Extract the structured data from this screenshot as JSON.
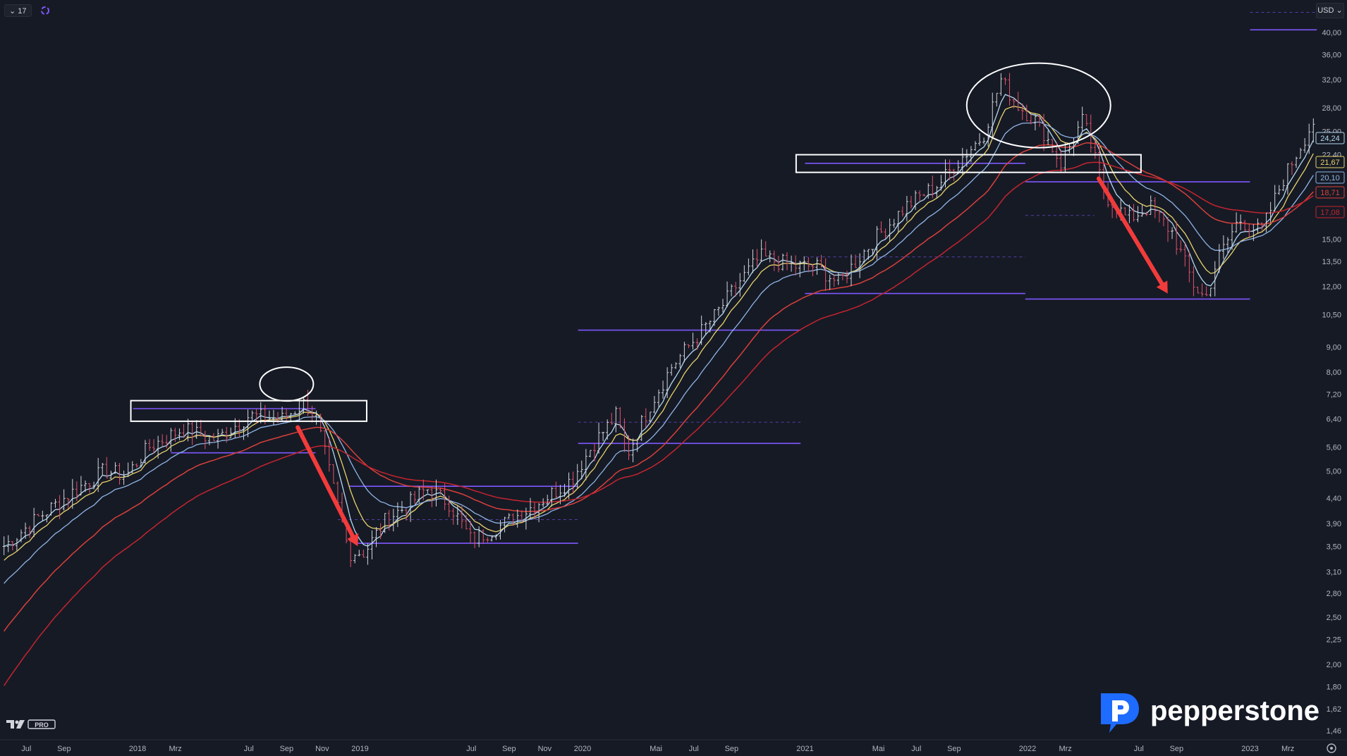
{
  "toolbar": {
    "interval_label": "17",
    "currency_label": "USD"
  },
  "branding": {
    "platform_label": "PRO",
    "broker_name": "pepperstone"
  },
  "colors": {
    "background": "#161a25",
    "candle_up": "#d1d4dc",
    "candle_down": "#e0536a",
    "ma_fast": "#b2d8f0",
    "ma_yellow": "#e8d36b",
    "ma_blue": "#8fb5e6",
    "ma_red1": "#d9403a",
    "ma_red2": "#c4242e",
    "level": "#7e57ff",
    "arrow": "#f23b3b"
  },
  "chart_data": {
    "type": "candlestick",
    "scale": "log",
    "y_ticks": [
      "40,00",
      "36,00",
      "32,00",
      "28,00",
      "25,00",
      "22,40",
      "15,00",
      "13,50",
      "12,00",
      "10,50",
      "9,00",
      "8,00",
      "7,20",
      "6,40",
      "5,60",
      "5,00",
      "4,40",
      "3,90",
      "3,50",
      "3,10",
      "2,80",
      "2,50",
      "2,25",
      "2,00",
      "1,80",
      "1,62",
      "1,46"
    ],
    "x_ticks": [
      "Jul",
      "Sep",
      "2018",
      "Mrz",
      "Jul",
      "Sep",
      "Nov",
      "2019",
      "Jul",
      "Sep",
      "Nov",
      "2020",
      "Mai",
      "Jul",
      "Sep",
      "2021",
      "Mai",
      "Jul",
      "Sep",
      "2022",
      "Mrz",
      "Jul",
      "Sep",
      "2023",
      "Mrz"
    ],
    "price_badges": [
      {
        "value": "24,24",
        "color": "#b2d8f0"
      },
      {
        "value": "21,67",
        "color": "#e8d36b"
      },
      {
        "value": "20,10",
        "color": "#8fb5e6"
      },
      {
        "value": "18,71",
        "color": "#d9403a"
      },
      {
        "value": "17,08",
        "color": "#c4242e"
      }
    ],
    "annotations": [
      "resistance box around 6,40-6,90 in 2018",
      "top circle near 6,90-7,20",
      "decline arrow to ~3,40 at end of 2018",
      "resistance box around 20,5-22,0 in 2021-2022",
      "top circle near 25-33",
      "decline arrow to ~11,5 in 2022"
    ],
    "price_path": [
      [
        2017.4,
        3.5
      ],
      [
        2017.55,
        4.0
      ],
      [
        2017.7,
        4.5
      ],
      [
        2017.85,
        5.0
      ],
      [
        2017.95,
        4.9
      ],
      [
        2018.05,
        5.6
      ],
      [
        2018.2,
        6.1
      ],
      [
        2018.35,
        5.8
      ],
      [
        2018.5,
        6.5
      ],
      [
        2018.65,
        6.4
      ],
      [
        2018.75,
        6.9
      ],
      [
        2018.8,
        6.5
      ],
      [
        2018.88,
        4.6
      ],
      [
        2018.95,
        3.4
      ],
      [
        2019.02,
        3.4
      ],
      [
        2019.12,
        4.0
      ],
      [
        2019.2,
        4.2
      ],
      [
        2019.3,
        4.6
      ],
      [
        2019.4,
        4.3
      ],
      [
        2019.5,
        3.6
      ],
      [
        2019.65,
        3.9
      ],
      [
        2019.8,
        4.3
      ],
      [
        2019.95,
        4.8
      ],
      [
        2020.05,
        5.7
      ],
      [
        2020.15,
        6.5
      ],
      [
        2020.2,
        5.4
      ],
      [
        2020.3,
        6.8
      ],
      [
        2020.4,
        8.2
      ],
      [
        2020.5,
        9.3
      ],
      [
        2020.6,
        10.5
      ],
      [
        2020.7,
        12.2
      ],
      [
        2020.8,
        13.8
      ],
      [
        2020.95,
        13.2
      ],
      [
        2021.05,
        13.2
      ],
      [
        2021.15,
        12.2
      ],
      [
        2021.3,
        14.8
      ],
      [
        2021.45,
        17.5
      ],
      [
        2021.6,
        19.5
      ],
      [
        2021.7,
        22.0
      ],
      [
        2021.8,
        24.5
      ],
      [
        2021.88,
        32.0
      ],
      [
        2021.95,
        28.5
      ],
      [
        2022.05,
        26.0
      ],
      [
        2022.15,
        21.5
      ],
      [
        2022.25,
        26.5
      ],
      [
        2022.35,
        18.5
      ],
      [
        2022.45,
        16.5
      ],
      [
        2022.55,
        17.5
      ],
      [
        2022.65,
        15.5
      ],
      [
        2022.75,
        12.0
      ],
      [
        2022.8,
        11.3
      ],
      [
        2022.85,
        13.5
      ],
      [
        2022.95,
        16.5
      ],
      [
        2023.05,
        15.5
      ],
      [
        2023.15,
        20.0
      ],
      [
        2023.25,
        24.5
      ],
      [
        2023.3,
        27.0
      ]
    ]
  }
}
